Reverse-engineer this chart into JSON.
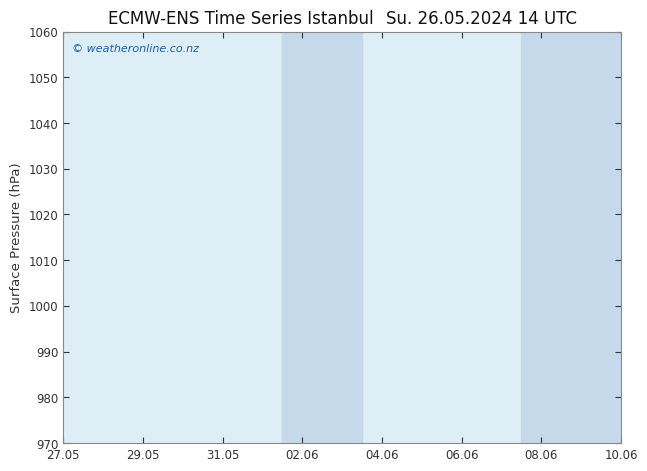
{
  "title_left": "ECMW-ENS Time Series Istanbul",
  "title_right": "Su. 26.05.2024 14 UTC",
  "ylabel": "Surface Pressure (hPa)",
  "ylim": [
    970,
    1060
  ],
  "yticks": [
    970,
    980,
    990,
    1000,
    1010,
    1020,
    1030,
    1040,
    1050,
    1060
  ],
  "xtick_labels": [
    "27.05",
    "29.05",
    "31.05",
    "02.06",
    "04.06",
    "06.06",
    "08.06",
    "10.06"
  ],
  "xtick_positions": [
    0,
    2,
    4,
    6,
    8,
    10,
    12,
    14
  ],
  "x_total": 14,
  "background_color": "#ffffff",
  "light_band_color": "#ddeef7",
  "dark_band_color": "#c5d9ea",
  "shaded_bands": [
    {
      "x_start": 5.5,
      "x_end": 7.5
    },
    {
      "x_start": 11.5,
      "x_end": 14
    }
  ],
  "watermark_text": "© weatheronline.co.nz",
  "watermark_color": "#1a5fa8",
  "title_fontsize": 12,
  "tick_fontsize": 8.5,
  "ylabel_fontsize": 9.5,
  "border_color": "#888888",
  "tick_color": "#333333"
}
